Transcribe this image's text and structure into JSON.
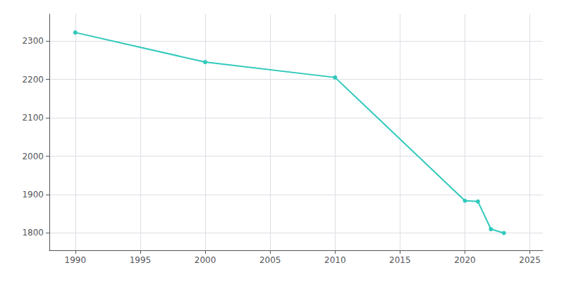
{
  "chart_data": {
    "type": "line",
    "x": [
      1990,
      2000,
      2010,
      2020,
      2021,
      2022,
      2023
    ],
    "values": [
      2322,
      2245,
      2205,
      1884,
      1882,
      1810,
      1800
    ],
    "color": "#30c9bb",
    "marker": "circle",
    "xlim": [
      1988,
      2026
    ],
    "xticks": [
      1990,
      1995,
      2000,
      2005,
      2010,
      2015,
      2020,
      2025
    ],
    "ylim": [
      1755,
      2370
    ],
    "yticks": [
      1800,
      1900,
      2000,
      2100,
      2200,
      2300
    ],
    "grid": true
  }
}
